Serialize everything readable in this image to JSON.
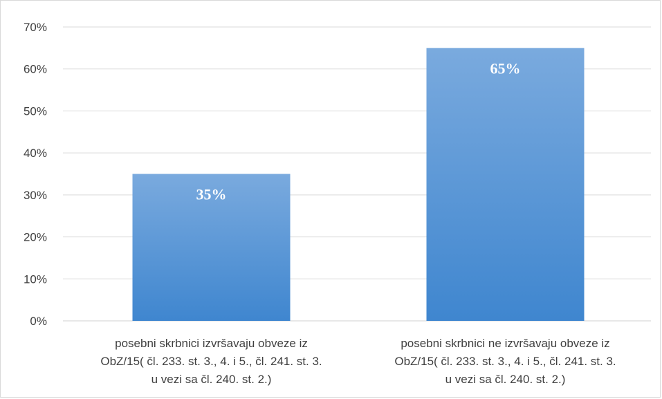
{
  "chart_data": {
    "type": "bar",
    "categories": [
      [
        "posebni skrbnici izvršavaju obveze iz",
        "ObZ/15( čl. 233. st. 3., 4.  i 5., čl. 241. st. 3.",
        "u vezi sa čl. 240. st. 2.)"
      ],
      [
        "posebni skrbnici ne izvršavaju obveze iz",
        "ObZ/15( čl. 233. st. 3., 4.  i 5., čl. 241. st. 3.",
        "u vezi sa čl. 240. st. 2.)"
      ]
    ],
    "values": [
      0.35,
      0.65
    ],
    "data_labels": [
      "35%",
      "65%"
    ],
    "ylim": [
      0,
      0.7
    ],
    "yticks": [
      "0%",
      "10%",
      "20%",
      "30%",
      "40%",
      "50%",
      "60%",
      "70%"
    ],
    "grid": true,
    "colors": {
      "bar_top": "#7aaade",
      "bar_bottom": "#3f86cf",
      "grid": "#d9d9d9",
      "text": "#404040"
    }
  }
}
